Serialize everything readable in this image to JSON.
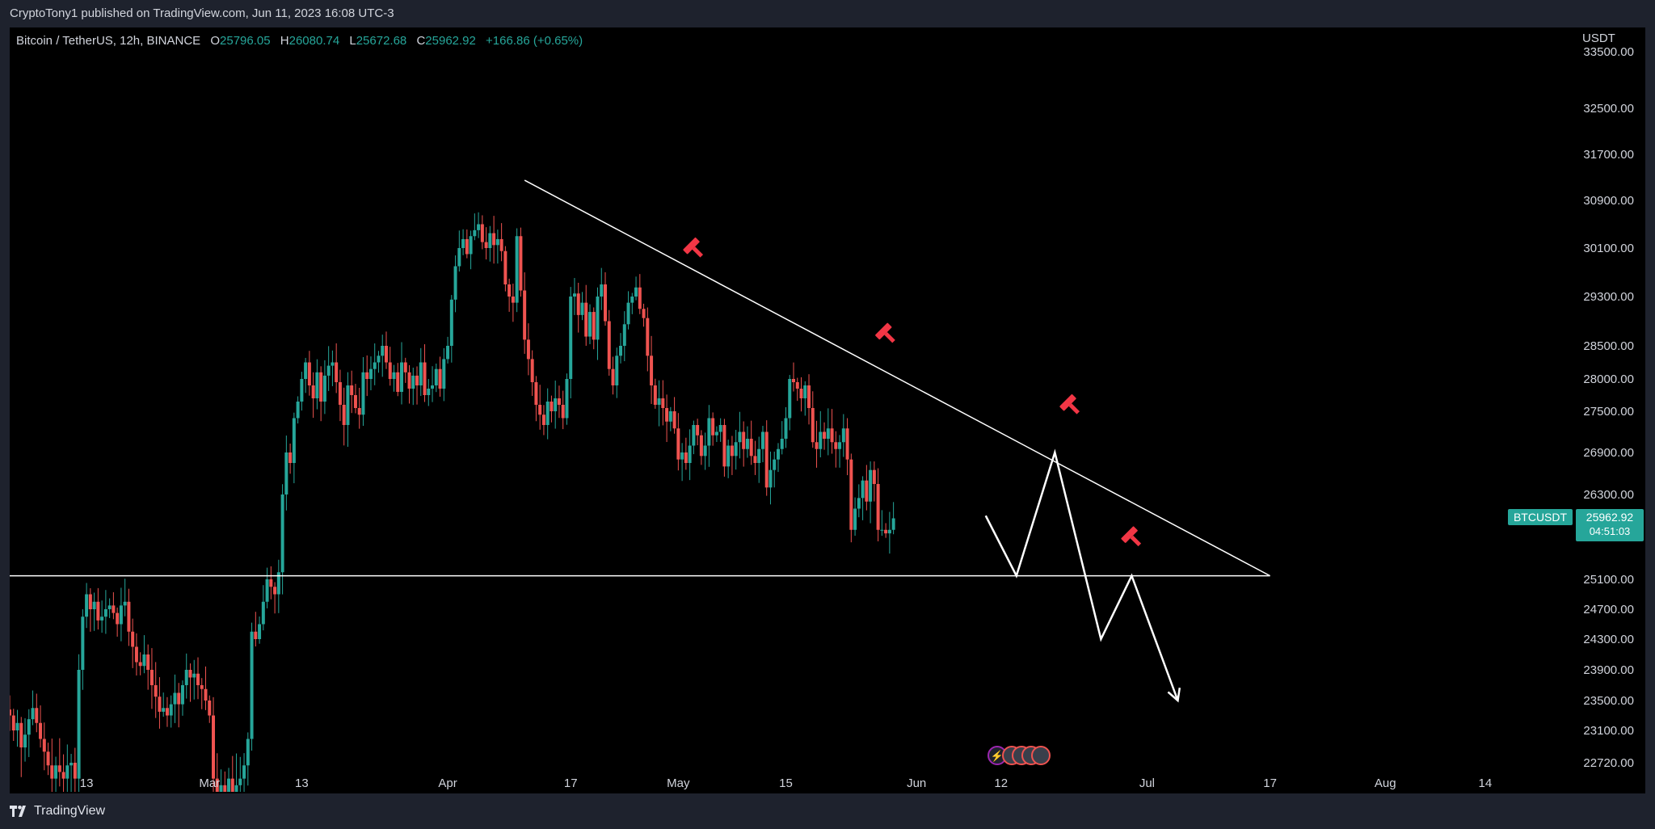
{
  "header": {
    "publisher_line": "CryptoTony1 published on TradingView.com, Jun 11, 2023 16:08 UTC-3"
  },
  "legend": {
    "symbol": "Bitcoin / TetherUS, 12h, BINANCE",
    "open_label": "O",
    "open_value": "25796.05",
    "high_label": "H",
    "high_value": "26080.74",
    "low_label": "L",
    "low_value": "25672.68",
    "close_label": "C",
    "close_value": "25962.92",
    "change": "+166.86 (+0.65%)"
  },
  "price_scale": {
    "currency": "USDT",
    "last_symbol": "BTCUSDT",
    "last_price": "25962.92",
    "countdown": "04:51:03"
  },
  "footer": {
    "brand": "TradingView"
  },
  "colors": {
    "up": "#26a69a",
    "down": "#ef5350",
    "background": "#000000",
    "line": "#ffffff",
    "marker": "#f23645",
    "label_bg": "#26a69a"
  },
  "chart_data": {
    "type": "candlestick",
    "ylim": [
      22500,
      33700
    ],
    "y_ticks": [
      22720,
      23100,
      23500,
      23900,
      24300,
      24700,
      25100,
      26300,
      26900,
      27500,
      28000,
      28500,
      29300,
      30100,
      30900,
      31700,
      32500,
      33500
    ],
    "y_tick_labels": [
      "22720.00",
      "23100.00",
      "23500.00",
      "23900.00",
      "24300.00",
      "24700.00",
      "25100.00",
      "26300.00",
      "26900.00",
      "27500.00",
      "28000.00",
      "28500.00",
      "29300.00",
      "30100.00",
      "30900.00",
      "31700.00",
      "32500.00",
      "33500.00"
    ],
    "x_ticks": [
      {
        "date": "2023-02-13",
        "label": "13"
      },
      {
        "date": "2023-03-01",
        "label": "Mar"
      },
      {
        "date": "2023-03-13",
        "label": "13"
      },
      {
        "date": "2023-04-01",
        "label": "Apr"
      },
      {
        "date": "2023-04-17",
        "label": "17"
      },
      {
        "date": "2023-05-01",
        "label": "May"
      },
      {
        "date": "2023-05-15",
        "label": "15"
      },
      {
        "date": "2023-06-01",
        "label": "Jun"
      },
      {
        "date": "2023-06-12",
        "label": "12"
      },
      {
        "date": "2023-07-01",
        "label": "Jul"
      },
      {
        "date": "2023-07-17",
        "label": "17"
      },
      {
        "date": "2023-08-01",
        "label": "Aug"
      },
      {
        "date": "2023-08-14",
        "label": "14"
      }
    ],
    "x_domain": [
      "2023-02-03",
      "2023-08-26"
    ],
    "closes_12h": [
      23300,
      23100,
      23200,
      22900,
      23050,
      23250,
      23400,
      23200,
      23000,
      22850,
      22700,
      22600,
      22700,
      22650,
      22600,
      22700,
      22720,
      22600,
      23900,
      24600,
      24900,
      24700,
      24800,
      24550,
      24600,
      24700,
      24750,
      24650,
      24500,
      24750,
      24800,
      24400,
      24200,
      24000,
      23950,
      24100,
      23900,
      23700,
      23550,
      23350,
      23400,
      23300,
      23450,
      23600,
      23450,
      23700,
      23900,
      23800,
      23850,
      23700,
      23650,
      23500,
      23300,
      22600,
      22500,
      22550,
      22500,
      22600,
      22500,
      22550,
      22600,
      22700,
      23000,
      24400,
      24300,
      24500,
      24800,
      25100,
      25000,
      24900,
      25200,
      26300,
      26900,
      26750,
      27400,
      27650,
      28000,
      28250,
      27900,
      27700,
      28100,
      27650,
      28050,
      28200,
      28250,
      27950,
      27600,
      27300,
      27900,
      27750,
      27550,
      27450,
      28100,
      28000,
      28150,
      28250,
      28350,
      28500,
      28250,
      28000,
      28100,
      27800,
      28250,
      28100,
      27850,
      28050,
      27900,
      28250,
      27750,
      27850,
      27900,
      28150,
      27850,
      28300,
      28500,
      29250,
      29800,
      30100,
      30250,
      30000,
      30300,
      30400,
      30500,
      30200,
      30100,
      30350,
      30150,
      30250,
      30050,
      29500,
      29300,
      29200,
      30300,
      29400,
      28600,
      28300,
      27950,
      27600,
      27450,
      27300,
      27650,
      27500,
      27700,
      27600,
      27400,
      28000,
      29300,
      29350,
      29000,
      29200,
      28650,
      29050,
      28600,
      29300,
      29500,
      28900,
      28150,
      27900,
      28350,
      28500,
      28850,
      29200,
      29300,
      29450,
      29100,
      28950,
      28350,
      27900,
      27600,
      27700,
      27550,
      27350,
      27500,
      27250,
      26800,
      26900,
      26750,
      27000,
      27300,
      27150,
      26850,
      27000,
      27400,
      27150,
      27200,
      27300,
      26700,
      27000,
      26850,
      27050,
      27200,
      26950,
      27100,
      26850,
      26750,
      26950,
      27200,
      26400,
      26650,
      26800,
      26950,
      27100,
      27400,
      28000,
      27950,
      27850,
      27700,
      27900,
      27550,
      27050,
      26950,
      27200,
      27100,
      27250,
      27050,
      26950,
      27050,
      27250,
      26800,
      25800,
      26100,
      26250,
      26500,
      26200,
      26650,
      26450,
      25800,
      25800,
      25750,
      25800,
      25962.92
    ],
    "trendlines": [
      {
        "name": "descending resistance",
        "from": [
          "2023-04-11",
          31250
        ],
        "to": [
          "2023-07-17",
          25150
        ]
      },
      {
        "name": "horizontal support",
        "from": [
          "2023-02-03",
          25150
        ],
        "to": [
          "2023-07-17",
          25150
        ]
      }
    ],
    "projection_path": [
      [
        "2023-06-10",
        26000
      ],
      [
        "2023-06-14",
        25150
      ],
      [
        "2023-06-19",
        26900
      ],
      [
        "2023-06-25",
        24300
      ],
      [
        "2023-06-29",
        25150
      ],
      [
        "2023-07-05",
        23500
      ]
    ],
    "resistance_markers": [
      {
        "date": "2023-05-03",
        "price": 30100
      },
      {
        "date": "2023-05-28",
        "price": 28700
      },
      {
        "date": "2023-06-21",
        "price": 27600
      },
      {
        "date": "2023-06-29",
        "price": 25700
      }
    ]
  }
}
